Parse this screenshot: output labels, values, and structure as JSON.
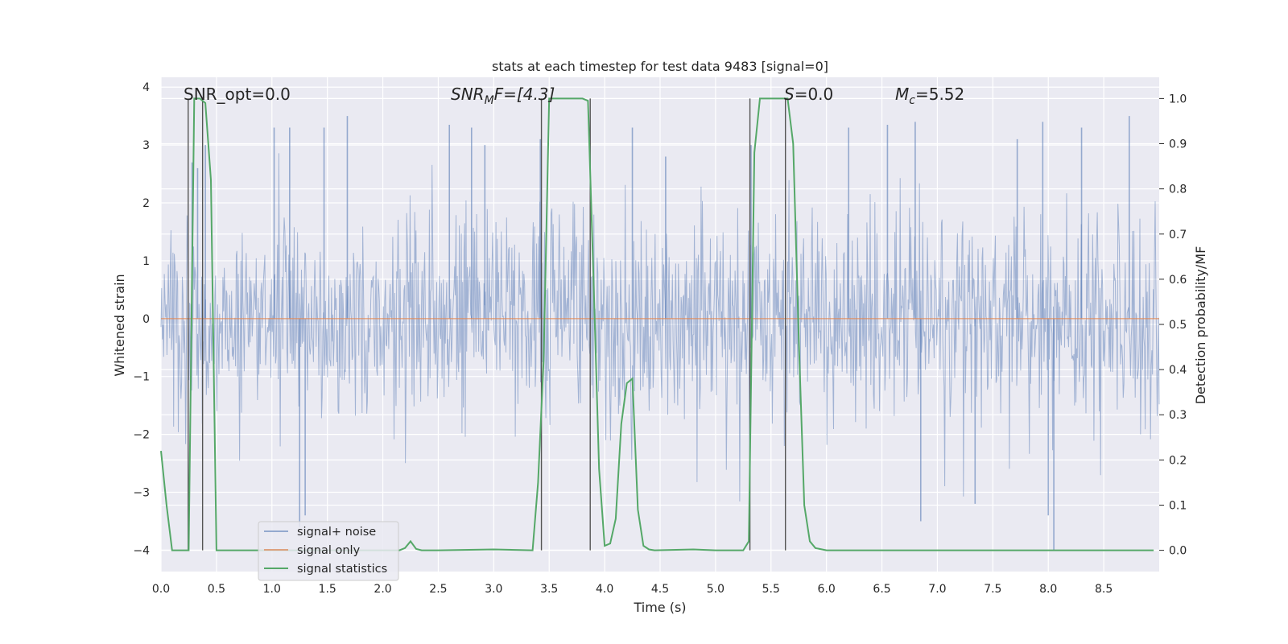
{
  "chart_data": {
    "type": "line",
    "title": "stats at each timestep for test data 9483 [signal=0]",
    "xlabel": "Time (s)",
    "ylabel_left": "Whitened strain",
    "ylabel_right": "Detection probability/MF",
    "xlim": [
      0.0,
      9.0
    ],
    "ylim_left": [
      -4.37,
      4.17
    ],
    "ylim_right": [
      -0.047,
      1.047
    ],
    "x_ticks": [
      "0.0",
      "0.5",
      "1.0",
      "1.5",
      "2.0",
      "2.5",
      "3.0",
      "3.5",
      "4.0",
      "4.5",
      "5.0",
      "5.5",
      "6.0",
      "6.5",
      "7.0",
      "7.5",
      "8.0",
      "8.5"
    ],
    "y_ticks_left": [
      "4",
      "3",
      "2",
      "1",
      "0",
      "−1",
      "−2",
      "−3",
      "−4"
    ],
    "y_ticks_right": [
      "1.0",
      "0.9",
      "0.8",
      "0.7",
      "0.6",
      "0.5",
      "0.4",
      "0.3",
      "0.2",
      "0.1",
      "0.0"
    ],
    "annotations": {
      "snr_opt": "SNR_opt=0.0",
      "snr_mf_prefix": "SNR",
      "snr_mf_sub": "M",
      "snr_mf_suffix": "F=[4.3]",
      "s_prefix": "S",
      "s_suffix": "=0.0",
      "mc_prefix": "M",
      "mc_sub": "c",
      "mc_suffix": "=5.52"
    },
    "legend": {
      "placement": "lower-left",
      "entries": [
        "signal+ noise",
        "signal only",
        "signal statistics"
      ]
    },
    "series": [
      {
        "name": "signal+ noise",
        "axis": "left",
        "color": "#4c72b0",
        "kind": "noise",
        "envelope": {
          "typical_amplitude": 1.4,
          "max_peak": 3.8,
          "min_peak": -4.0
        },
        "notable_peaks": [
          [
            0.28,
            2.7
          ],
          [
            0.33,
            2.6
          ],
          [
            0.4,
            3.0
          ],
          [
            1.02,
            3.3
          ],
          [
            1.16,
            3.3
          ],
          [
            1.25,
            -3.6
          ],
          [
            1.3,
            -3.4
          ],
          [
            1.47,
            3.3
          ],
          [
            1.68,
            3.5
          ],
          [
            2.6,
            3.35
          ],
          [
            2.8,
            3.3
          ],
          [
            2.92,
            3.0
          ],
          [
            3.42,
            3.1
          ],
          [
            4.25,
            3.3
          ],
          [
            4.55,
            2.8
          ],
          [
            5.32,
            3.0
          ],
          [
            6.2,
            3.3
          ],
          [
            6.55,
            3.35
          ],
          [
            6.8,
            3.4
          ],
          [
            6.85,
            -3.5
          ],
          [
            7.34,
            -3.2
          ],
          [
            7.72,
            3.1
          ],
          [
            7.95,
            3.4
          ],
          [
            8.0,
            -3.4
          ],
          [
            8.05,
            -4.0
          ],
          [
            8.3,
            3.3
          ],
          [
            8.73,
            3.5
          ]
        ]
      },
      {
        "name": "signal only",
        "axis": "left",
        "color": "#dd8452",
        "x": [
          0.0,
          9.0
        ],
        "y": [
          0.0,
          0.0
        ]
      },
      {
        "name": "signal statistics",
        "axis": "right",
        "color": "#55a868",
        "x": [
          0.0,
          0.05,
          0.1,
          0.15,
          0.2,
          0.25,
          0.3,
          0.35,
          0.4,
          0.45,
          0.5,
          0.55,
          1.0,
          1.5,
          2.0,
          2.15,
          2.2,
          2.25,
          2.3,
          2.35,
          2.5,
          3.0,
          3.35,
          3.4,
          3.45,
          3.5,
          3.55,
          3.6,
          3.8,
          3.85,
          3.9,
          3.95,
          4.0,
          4.05,
          4.1,
          4.15,
          4.2,
          4.25,
          4.3,
          4.35,
          4.4,
          4.45,
          4.8,
          5.0,
          5.25,
          5.3,
          5.35,
          5.4,
          5.45,
          5.6,
          5.65,
          5.7,
          5.75,
          5.8,
          5.85,
          5.9,
          6.0,
          7.0,
          8.0,
          8.95
        ],
        "y": [
          0.22,
          0.1,
          0.0,
          0.0,
          0.0,
          0.0,
          1.0,
          1.0,
          0.99,
          0.82,
          0.0,
          0.0,
          0.0,
          0.0,
          0.0,
          0.0,
          0.005,
          0.02,
          0.003,
          0.0,
          0.0,
          0.002,
          0.0,
          0.15,
          0.42,
          1.0,
          1.0,
          1.0,
          1.0,
          0.995,
          0.6,
          0.18,
          0.01,
          0.015,
          0.07,
          0.28,
          0.37,
          0.38,
          0.09,
          0.01,
          0.002,
          0.0,
          0.002,
          0.0,
          0.0,
          0.02,
          0.88,
          1.0,
          1.0,
          1.0,
          1.0,
          0.9,
          0.47,
          0.1,
          0.02,
          0.005,
          0.0,
          0.0,
          0.0,
          0.0
        ]
      }
    ],
    "marker_lines_x": [
      0.245,
      0.375,
      3.43,
      3.87,
      5.31,
      5.63
    ]
  }
}
